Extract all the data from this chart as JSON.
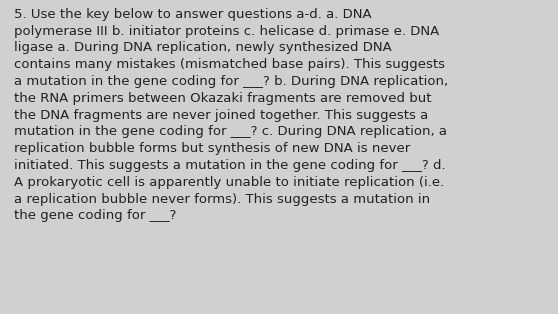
{
  "background_color": "#d0d0d0",
  "text_color": "#222222",
  "font_size": 9.5,
  "font_family": "DejaVu Sans",
  "lines": [
    "5. Use the key below to answer questions a-d. a. DNA",
    "polymerase III b. initiator proteins c. helicase d. primase e. DNA",
    "ligase a. During DNA replication, newly synthesized DNA",
    "contains many mistakes (mismatched base pairs). This suggests",
    "a mutation in the gene coding for ___? b. During DNA replication,",
    "the RNA primers between Okazaki fragments are removed but",
    "the DNA fragments are never joined together. This suggests a",
    "mutation in the gene coding for ___? c. During DNA replication, a",
    "replication bubble forms but synthesis of new DNA is never",
    "initiated. This suggests a mutation in the gene coding for ___? d.",
    "A prokaryotic cell is apparently unable to initiate replication (i.e.",
    "a replication bubble never forms). This suggests a mutation in",
    "the gene coding for ___?"
  ],
  "figsize": [
    5.58,
    3.14
  ],
  "dpi": 100
}
